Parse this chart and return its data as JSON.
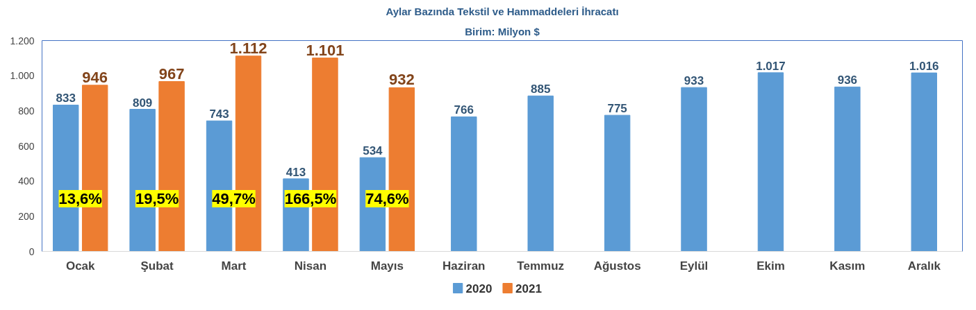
{
  "chart_data": {
    "type": "bar",
    "title": "Aylar Bazında Tekstil ve Hammaddeleri İhracatı",
    "subtitle": "Birim: Milyon $",
    "categories": [
      "Ocak",
      "Şubat",
      "Mart",
      "Nisan",
      "Mayıs",
      "Haziran",
      "Temmuz",
      "Ağustos",
      "Eylül",
      "Ekim",
      "Kasım",
      "Aralık"
    ],
    "series": [
      {
        "name": "2020",
        "color": "#5b9bd5",
        "values": [
          833,
          809,
          743,
          413,
          534,
          766,
          885,
          775,
          933,
          1017,
          936,
          1016
        ],
        "value_labels": [
          "833",
          "809",
          "743",
          "413",
          "534",
          "766",
          "885",
          "775",
          "933",
          "1.017",
          "936",
          "1.016"
        ]
      },
      {
        "name": "2021",
        "color": "#ed7d31",
        "values": [
          946,
          967,
          1112,
          1101,
          932,
          null,
          null,
          null,
          null,
          null,
          null,
          null
        ],
        "value_labels": [
          "946",
          "967",
          "1.112",
          "1.101",
          "932",
          null,
          null,
          null,
          null,
          null,
          null,
          null
        ]
      }
    ],
    "ylim": [
      0,
      1200
    ],
    "yticks": [
      0,
      {
        "value": 200,
        "label": "200"
      },
      {
        "value": 400,
        "label": "400"
      },
      {
        "value": 600,
        "label": "600"
      },
      {
        "value": 800,
        "label": "800"
      },
      {
        "value": 1000,
        "label": "1.000"
      },
      {
        "value": 1200,
        "label": "1.200"
      }
    ],
    "annotations": [
      {
        "text": "13,6%",
        "x": "Ocak",
        "y": 300
      },
      {
        "text": "19,5%",
        "x": "Şubat",
        "y": 300
      },
      {
        "text": "49,7%",
        "x": "Mart",
        "y": 300
      },
      {
        "text": "166,5%",
        "x": "Nisan",
        "y": 300
      },
      {
        "text": "74,6%",
        "x": "Mayıs",
        "y": 300
      }
    ],
    "grid": false,
    "legend": "bottom"
  }
}
